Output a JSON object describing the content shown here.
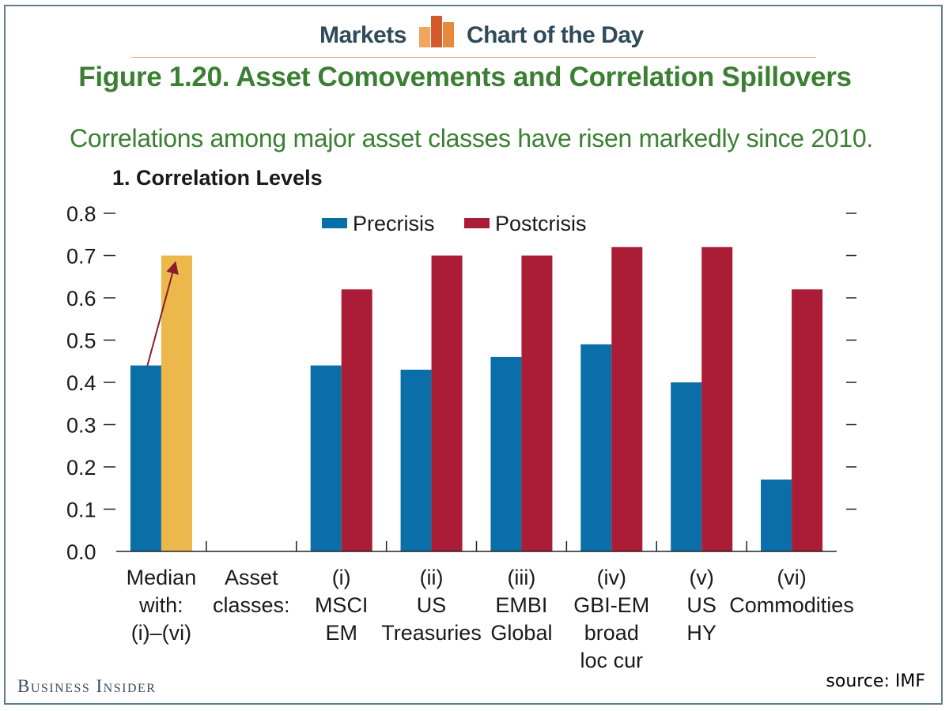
{
  "header": {
    "left_label": "Markets",
    "right_label": "Chart of the Day"
  },
  "figure_title": "Figure 1.20. Asset Comovements and Correlation Spillovers",
  "subtitle": "Correlations among major asset classes have risen markedly since 2010.",
  "panel_title": "1. Correlation Levels",
  "footer": {
    "brand": "Business Insider",
    "source": "source: IMF"
  },
  "colors": {
    "precrisis": "#0a6fa8",
    "postcrisis": "#ab1c36",
    "median_post": "#ecb84c",
    "arrow": "#8b1a2e",
    "title_green": "#3a7f32"
  },
  "chart_data": {
    "type": "bar",
    "title": "1. Correlation Levels",
    "ylim": [
      0.0,
      0.8
    ],
    "yticks": [
      "0.0",
      "0.1",
      "0.2",
      "0.3",
      "0.4",
      "0.5",
      "0.6",
      "0.7",
      "0.8"
    ],
    "legend": [
      "Precrisis",
      "Postcrisis"
    ],
    "categories": [
      {
        "label_lines": [
          "Median",
          "with:",
          "(i)–(vi)"
        ],
        "precrisis": 0.44,
        "postcrisis": 0.7,
        "median": true
      },
      {
        "label_lines": [
          "Asset",
          "classes:"
        ],
        "precrisis": null,
        "postcrisis": null
      },
      {
        "label_lines": [
          "(i)",
          "MSCI",
          "EM"
        ],
        "precrisis": 0.44,
        "postcrisis": 0.62
      },
      {
        "label_lines": [
          "(ii)",
          "US",
          "Treasuries"
        ],
        "precrisis": 0.43,
        "postcrisis": 0.7
      },
      {
        "label_lines": [
          "(iii)",
          "EMBI",
          "Global"
        ],
        "precrisis": 0.46,
        "postcrisis": 0.7
      },
      {
        "label_lines": [
          "(iv)",
          "GBI-EM",
          "broad",
          "loc cur"
        ],
        "precrisis": 0.49,
        "postcrisis": 0.72
      },
      {
        "label_lines": [
          "(v)",
          "US",
          "HY"
        ],
        "precrisis": 0.4,
        "postcrisis": 0.72
      },
      {
        "label_lines": [
          "(vi)",
          "Commodities"
        ],
        "precrisis": 0.17,
        "postcrisis": 0.62
      }
    ]
  }
}
